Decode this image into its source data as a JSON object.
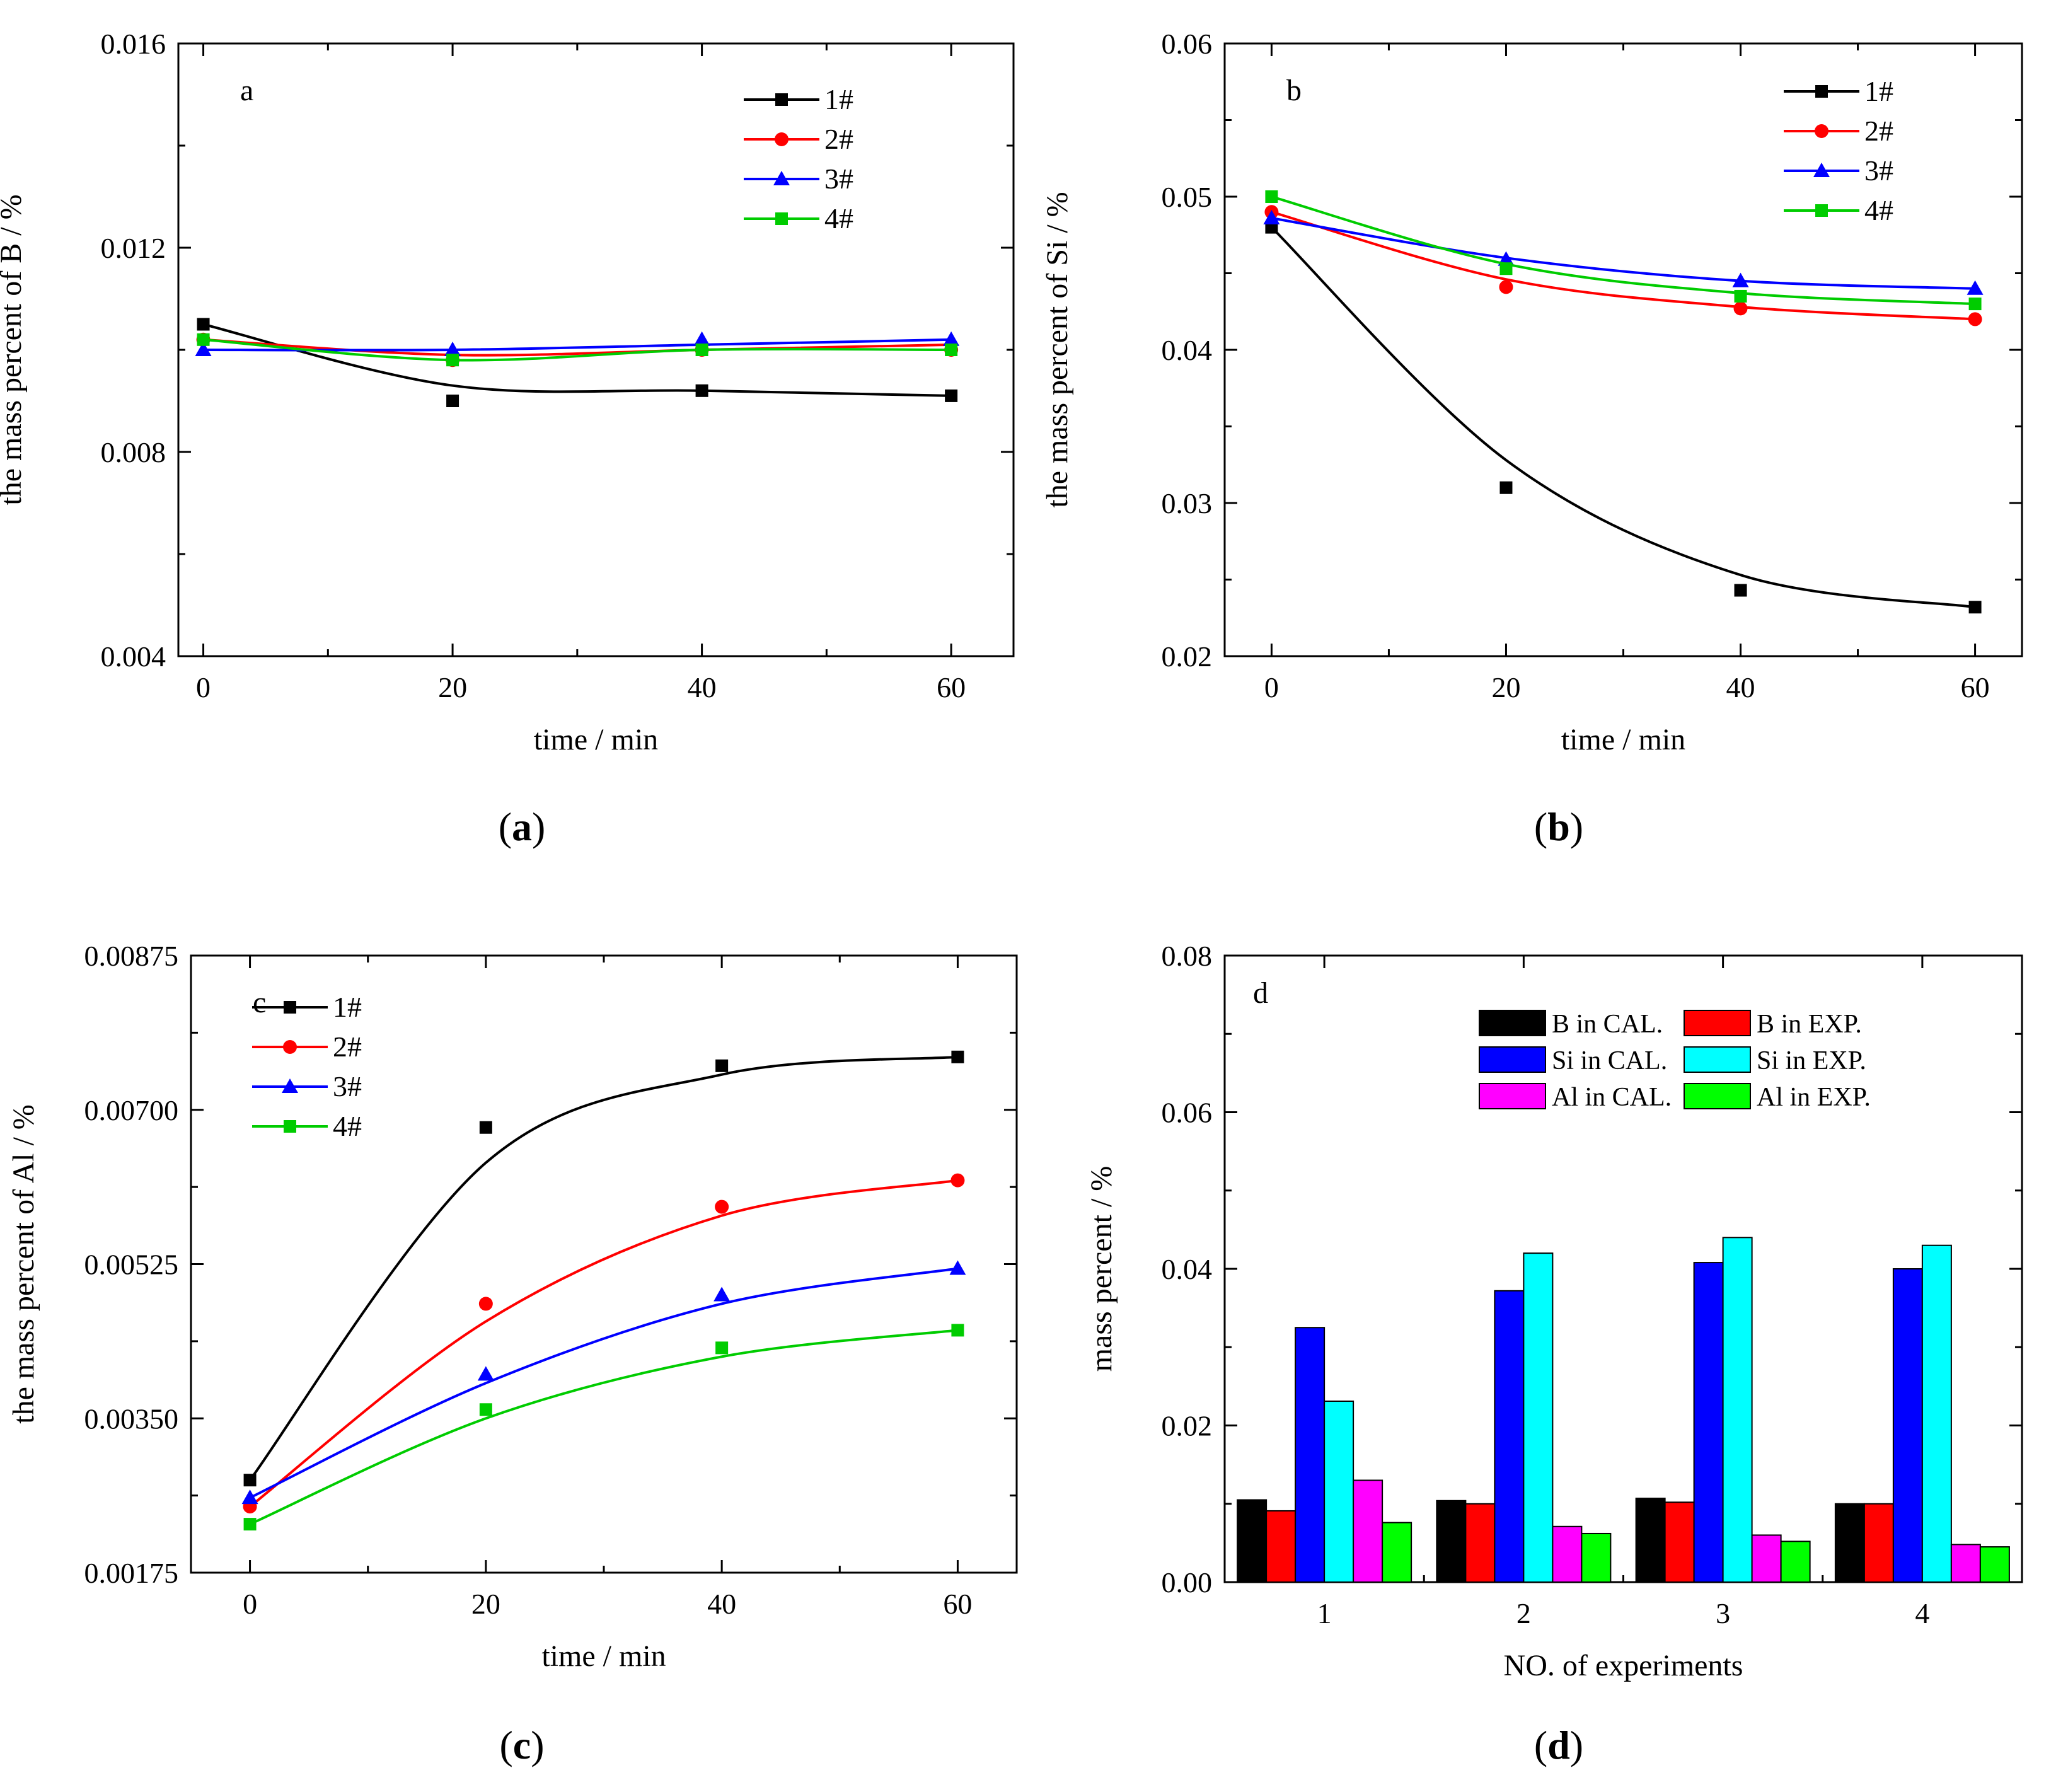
{
  "chart_data": [
    {
      "type": "line",
      "panel_letter": "a",
      "caption": "(a)",
      "xlabel": "time / min",
      "ylabel": "the mass percent of B / %",
      "x": [
        0,
        20,
        40,
        60
      ],
      "xticks": [
        "0",
        "20",
        "40",
        "60"
      ],
      "xlim": [
        -2,
        65
      ],
      "ylim": [
        0.004,
        0.016
      ],
      "yticks": [
        "0.004",
        "0.008",
        "0.012",
        "0.016"
      ],
      "ytick_values": [
        0.004,
        0.008,
        0.012,
        0.016
      ],
      "legend": "top-right",
      "series": [
        {
          "name": "1#",
          "marker": "square",
          "color": "#000000",
          "values": [
            0.0105,
            0.009,
            0.0092,
            0.0091
          ],
          "fit": [
            0.0105,
            0.0093,
            0.0092,
            0.0091
          ]
        },
        {
          "name": "2#",
          "marker": "circle",
          "color": "#ff0000",
          "values": [
            0.0102,
            0.0098,
            0.01,
            0.01
          ],
          "fit": [
            0.0102,
            0.0099,
            0.01,
            0.0101
          ]
        },
        {
          "name": "3#",
          "marker": "triangle",
          "color": "#0000ff",
          "values": [
            0.01,
            0.01,
            0.0102,
            0.0102
          ],
          "fit": [
            0.01,
            0.01,
            0.0101,
            0.0102
          ]
        },
        {
          "name": "4#",
          "marker": "square",
          "color": "#00cc00",
          "values": [
            0.0102,
            0.0098,
            0.01,
            0.01
          ],
          "fit": [
            0.0102,
            0.0098,
            0.01,
            0.01
          ]
        }
      ]
    },
    {
      "type": "line",
      "panel_letter": "b",
      "caption": "(b)",
      "xlabel": "time / min",
      "ylabel": "the mass percent of Si / %",
      "x": [
        0,
        20,
        40,
        60
      ],
      "xticks": [
        "0",
        "20",
        "40",
        "60"
      ],
      "xlim": [
        -4,
        64
      ],
      "ylim": [
        0.02,
        0.06
      ],
      "yticks": [
        "0.02",
        "0.03",
        "0.04",
        "0.05",
        "0.06"
      ],
      "ytick_values": [
        0.02,
        0.03,
        0.04,
        0.05,
        0.06
      ],
      "legend": "top-right",
      "series": [
        {
          "name": "1#",
          "marker": "square",
          "color": "#000000",
          "values": [
            0.048,
            0.031,
            0.0243,
            0.0232
          ],
          "fit": [
            0.048,
            0.0328,
            0.0253,
            0.0232
          ]
        },
        {
          "name": "2#",
          "marker": "circle",
          "color": "#ff0000",
          "values": [
            0.049,
            0.0441,
            0.0427,
            0.042
          ],
          "fit": [
            0.049,
            0.0446,
            0.0428,
            0.042
          ]
        },
        {
          "name": "3#",
          "marker": "triangle",
          "color": "#0000ff",
          "values": [
            0.0486,
            0.0459,
            0.0445,
            0.044
          ],
          "fit": [
            0.0486,
            0.046,
            0.0445,
            0.044
          ]
        },
        {
          "name": "4#",
          "marker": "square",
          "color": "#00cc00",
          "values": [
            0.05,
            0.0453,
            0.0435,
            0.043
          ],
          "fit": [
            0.05,
            0.0456,
            0.0437,
            0.043
          ]
        }
      ]
    },
    {
      "type": "line",
      "panel_letter": "c",
      "caption": "(c)",
      "xlabel": "time / min",
      "ylabel": "the mass percent  of Al / %",
      "x": [
        0,
        20,
        40,
        60
      ],
      "xticks": [
        "0",
        "20",
        "40",
        "60"
      ],
      "xlim": [
        -5,
        65
      ],
      "ylim": [
        0.00175,
        0.00875
      ],
      "yticks": [
        "0.00175",
        "0.00350",
        "0.00525",
        "0.00700",
        "0.00875"
      ],
      "ytick_values": [
        0.00175,
        0.0035,
        0.00525,
        0.007,
        0.00875
      ],
      "legend": "top-left",
      "series": [
        {
          "name": "1#",
          "marker": "square",
          "color": "#000000",
          "values": [
            0.0028,
            0.0068,
            0.0075,
            0.0076
          ],
          "fit": [
            0.0028,
            0.0064,
            0.0074,
            0.0076
          ]
        },
        {
          "name": "2#",
          "marker": "circle",
          "color": "#ff0000",
          "values": [
            0.0025,
            0.0048,
            0.0059,
            0.0062
          ],
          "fit": [
            0.0025,
            0.0046,
            0.0058,
            0.0062
          ]
        },
        {
          "name": "3#",
          "marker": "triangle",
          "color": "#0000ff",
          "values": [
            0.0026,
            0.004,
            0.0049,
            0.0052
          ],
          "fit": [
            0.0026,
            0.0039,
            0.0048,
            0.0052
          ]
        },
        {
          "name": "4#",
          "marker": "square",
          "color": "#00cc00",
          "values": [
            0.0023,
            0.0036,
            0.0043,
            0.0045
          ],
          "fit": [
            0.0023,
            0.0035,
            0.0042,
            0.0045
          ]
        }
      ]
    },
    {
      "type": "bar",
      "panel_letter": "d",
      "caption": "(d)",
      "xlabel": "NO. of experiments",
      "ylabel": "mass percent / %",
      "categories": [
        "1",
        "2",
        "3",
        "4"
      ],
      "ylim": [
        0.0,
        0.08
      ],
      "yticks": [
        "0.00",
        "0.02",
        "0.04",
        "0.06",
        "0.08"
      ],
      "ytick_values": [
        0.0,
        0.02,
        0.04,
        0.06,
        0.08
      ],
      "legend": "top-right",
      "series": [
        {
          "name": "B in CAL.",
          "color": "#000000",
          "values": [
            0.0105,
            0.0104,
            0.0107,
            0.01
          ]
        },
        {
          "name": "B in EXP.",
          "color": "#ff0000",
          "values": [
            0.0091,
            0.01,
            0.0102,
            0.01
          ]
        },
        {
          "name": "Si in CAL.",
          "color": "#0000ff",
          "values": [
            0.0325,
            0.0372,
            0.0408,
            0.04
          ]
        },
        {
          "name": "Si in EXP.",
          "color": "#00ffff",
          "values": [
            0.0231,
            0.042,
            0.044,
            0.043
          ]
        },
        {
          "name": "Al in CAL.",
          "color": "#ff00ff",
          "values": [
            0.013,
            0.0071,
            0.006,
            0.0048
          ]
        },
        {
          "name": "Al in EXP.",
          "color": "#00ff00",
          "values": [
            0.0076,
            0.0062,
            0.0052,
            0.0045
          ]
        }
      ]
    }
  ]
}
